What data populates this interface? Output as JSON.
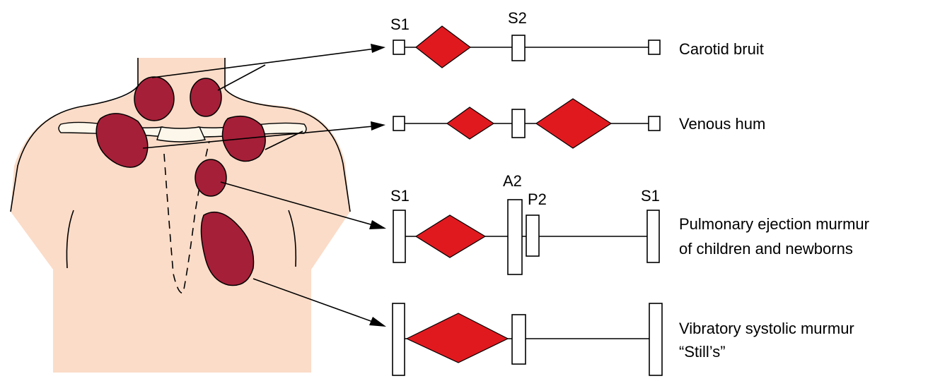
{
  "colors": {
    "skin": "#fbdcc8",
    "murmur_fill": "#e0191f",
    "spot_fill": "#a51f38",
    "bone_fill": "#fdf6ea"
  },
  "rows": [
    {
      "id": "carotid",
      "label_lines": [
        "Carotid bruit"
      ],
      "sound_labels": [
        "S1",
        "S2"
      ]
    },
    {
      "id": "venous",
      "label_lines": [
        "Venous hum"
      ],
      "sound_labels": []
    },
    {
      "id": "pulmonary",
      "label_lines": [
        "Pulmonary ejection murmur",
        "of children and newborns"
      ],
      "sound_labels": [
        "S1",
        "A2",
        "P2",
        "S1"
      ]
    },
    {
      "id": "stills",
      "label_lines": [
        "Vibratory systolic murmur",
        "“Still’s”"
      ],
      "sound_labels": []
    }
  ]
}
